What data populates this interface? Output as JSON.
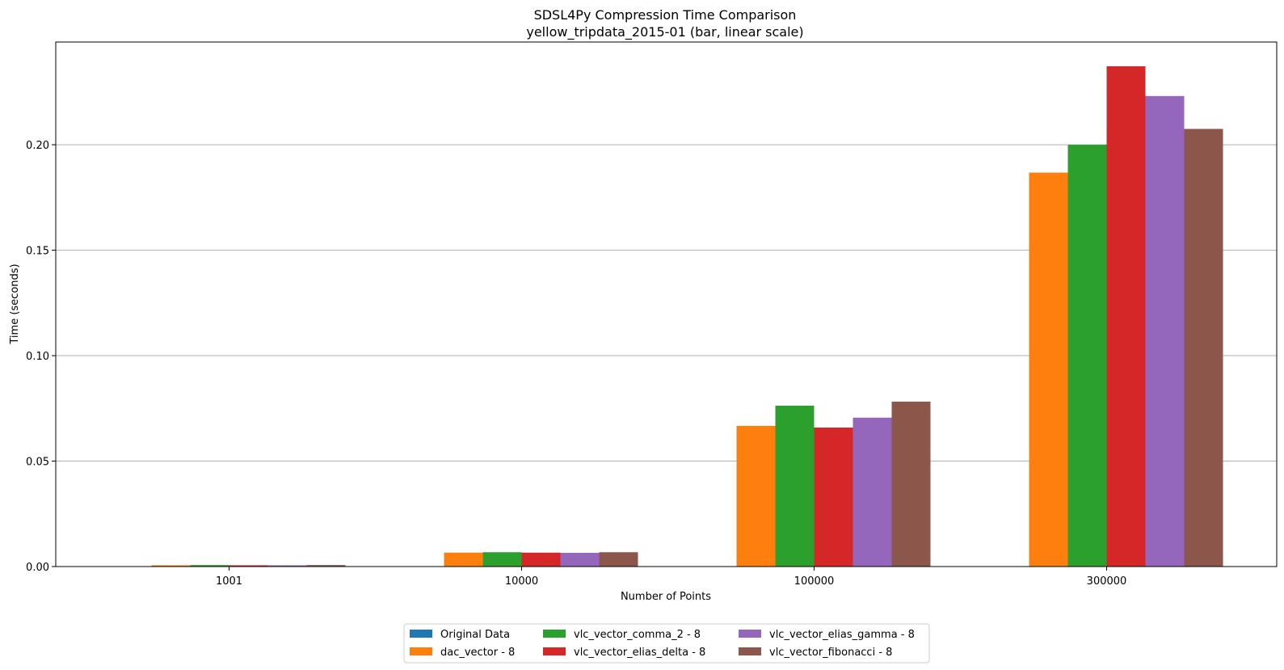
{
  "chart_data": {
    "type": "bar",
    "title": "SDSL4Py Compression Time Comparison",
    "subtitle": "yellow_tripdata_2015-01 (bar, linear scale)",
    "xlabel": "Number of Points",
    "ylabel": "Time (seconds)",
    "categories": [
      "1001",
      "10000",
      "100000",
      "300000"
    ],
    "ylim": [
      0,
      0.2487
    ],
    "yticks": [
      0.0,
      0.05,
      0.1,
      0.15,
      0.2
    ],
    "ytick_labels": [
      "0.00",
      "0.05",
      "0.10",
      "0.15",
      "0.20"
    ],
    "grid": "y",
    "legend_position": "bottom-center",
    "series": [
      {
        "name": "Original Data",
        "color": "#1f77b4",
        "values": [
          0,
          0,
          0,
          0
        ]
      },
      {
        "name": "dac_vector - 8",
        "color": "#ff7f0e",
        "values": [
          0.0006,
          0.0066,
          0.0667,
          0.1868
        ]
      },
      {
        "name": "vlc_vector_comma_2 - 8",
        "color": "#2ca02c",
        "values": [
          0.0007,
          0.0068,
          0.0763,
          0.2
        ]
      },
      {
        "name": "vlc_vector_elias_delta - 8",
        "color": "#d62728",
        "values": [
          0.0006,
          0.0066,
          0.0659,
          0.2372
        ]
      },
      {
        "name": "vlc_vector_elias_gamma - 8",
        "color": "#9467bd",
        "values": [
          0.0006,
          0.0065,
          0.0706,
          0.2231
        ]
      },
      {
        "name": "vlc_vector_fibonacci - 8",
        "color": "#8c564b",
        "values": [
          0.0007,
          0.0068,
          0.0782,
          0.2075
        ]
      }
    ]
  }
}
